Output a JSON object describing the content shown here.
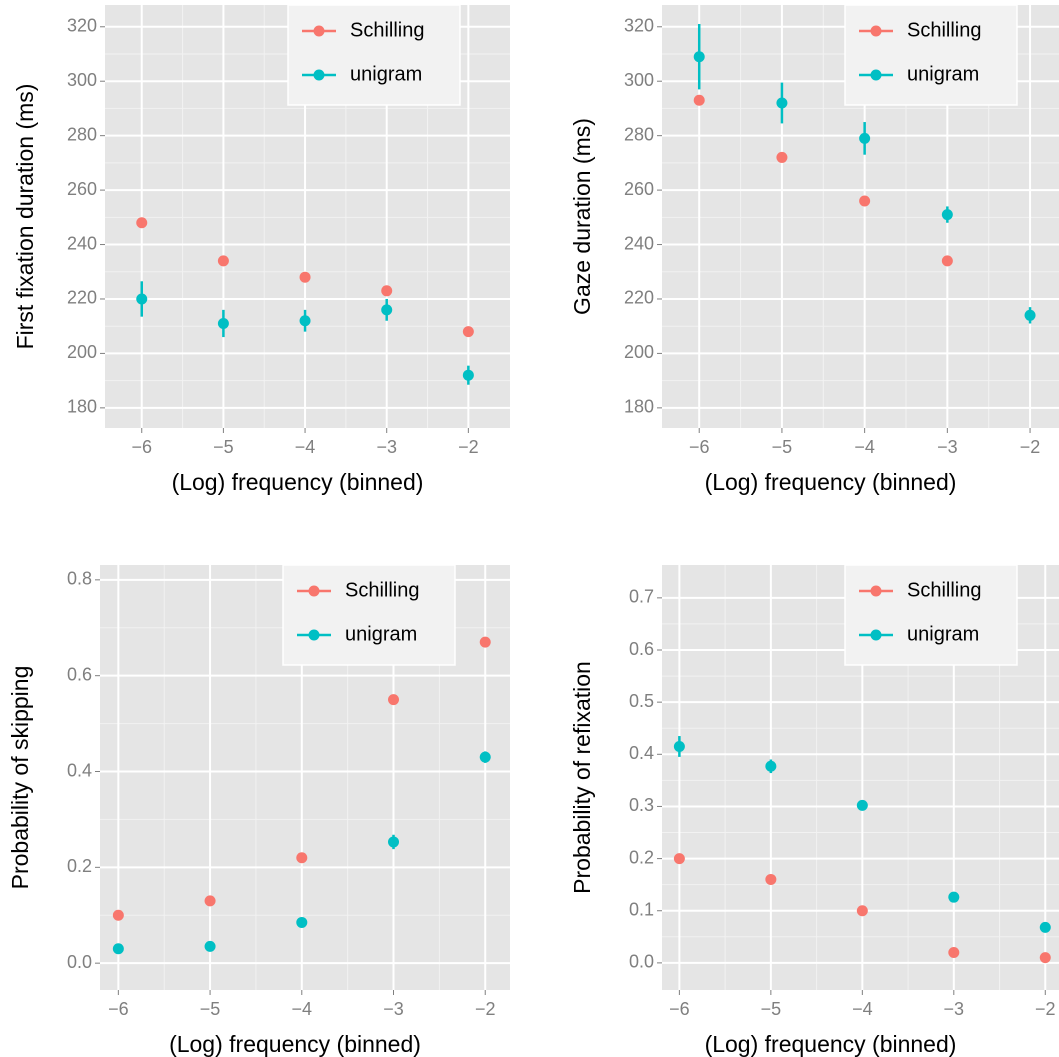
{
  "chart_data": [
    {
      "type": "scatter",
      "x_label": "(Log) frequency (binned)",
      "y_label": "First fixation duration (ms)",
      "x": [
        -6,
        -5,
        -4,
        -3,
        -2
      ],
      "xlim": [
        -6.45,
        -1.49
      ],
      "ylim": [
        172.6,
        328
      ],
      "xticks": [
        {
          "value": -6,
          "label": "−6"
        },
        {
          "value": -5,
          "label": "−5"
        },
        {
          "value": -4,
          "label": "−4"
        },
        {
          "value": -3,
          "label": "−3"
        },
        {
          "value": -2,
          "label": "−2"
        }
      ],
      "yticks": [
        180,
        200,
        220,
        240,
        260,
        280,
        300,
        320
      ],
      "grid": true,
      "legend": "top-right",
      "series": [
        {
          "name": "Schilling",
          "color": "#F8766D",
          "values": [
            248,
            234,
            228,
            223,
            208
          ]
        },
        {
          "name": "unigram",
          "color": "#00BFC4",
          "values": [
            220,
            211,
            212,
            216,
            192
          ],
          "errors": [
            6.5,
            5,
            4,
            4,
            3.5
          ]
        }
      ]
    },
    {
      "type": "scatter",
      "x_label": "(Log) frequency (binned)",
      "y_label": "Gaze duration (ms)",
      "x": [
        -6,
        -5,
        -4,
        -3,
        -2
      ],
      "xlim": [
        -6.45,
        -1.65
      ],
      "ylim": [
        172.6,
        328
      ],
      "xticks": [
        {
          "value": -6,
          "label": "−6"
        },
        {
          "value": -5,
          "label": "−5"
        },
        {
          "value": -4,
          "label": "−4"
        },
        {
          "value": -3,
          "label": "−3"
        },
        {
          "value": -2,
          "label": "−2"
        }
      ],
      "yticks": [
        180,
        200,
        220,
        240,
        260,
        280,
        300,
        320
      ],
      "grid": true,
      "legend": "top-right",
      "series": [
        {
          "name": "Schilling",
          "color": "#F8766D",
          "values": [
            293,
            272,
            256,
            234,
            null
          ]
        },
        {
          "name": "unigram",
          "color": "#00BFC4",
          "values": [
            309,
            292,
            279,
            251,
            214
          ],
          "errors": [
            12,
            7.5,
            6,
            3,
            3
          ]
        }
      ]
    },
    {
      "type": "scatter",
      "x_label": "(Log) frequency (binned)",
      "y_label": "Probability of skipping",
      "x": [
        -6,
        -5,
        -4,
        -3,
        -2
      ],
      "xlim": [
        -6.2,
        -1.73
      ],
      "ylim": [
        -0.056,
        0.831
      ],
      "xticks": [
        {
          "value": -6,
          "label": "−6"
        },
        {
          "value": -5,
          "label": "−5"
        },
        {
          "value": -4,
          "label": "−4"
        },
        {
          "value": -3,
          "label": "−3"
        },
        {
          "value": -2,
          "label": "−2"
        }
      ],
      "yticks": [
        {
          "value": 0,
          "label": "0.0"
        },
        0.2,
        0.4,
        0.6,
        0.8
      ],
      "grid": true,
      "legend": "top-right",
      "series": [
        {
          "name": "Schilling",
          "color": "#F8766D",
          "values": [
            0.1,
            0.13,
            0.22,
            0.55,
            0.67
          ]
        },
        {
          "name": "unigram",
          "color": "#00BFC4",
          "values": [
            0.03,
            0.035,
            0.085,
            0.253,
            0.43
          ],
          "errors": [
            0.004,
            0.005,
            0.006,
            0.015,
            0.012
          ]
        }
      ]
    },
    {
      "type": "scatter",
      "x_label": "(Log) frequency (binned)",
      "y_label": "Probability of refixation",
      "x": [
        -6,
        -5,
        -4,
        -3,
        -2
      ],
      "xlim": [
        -6.19,
        -1.85
      ],
      "ylim": [
        -0.052,
        0.763
      ],
      "xticks": [
        {
          "value": -6,
          "label": "−6"
        },
        {
          "value": -5,
          "label": "−5"
        },
        {
          "value": -4,
          "label": "−4"
        },
        {
          "value": -3,
          "label": "−3"
        },
        {
          "value": -2,
          "label": "−2"
        }
      ],
      "yticks": [
        {
          "value": 0,
          "label": "0.0"
        },
        0.1,
        0.2,
        0.3,
        0.4,
        0.5,
        0.6,
        0.7
      ],
      "grid": true,
      "legend": "top-right",
      "series": [
        {
          "name": "Schilling",
          "color": "#F8766D",
          "values": [
            0.2,
            0.16,
            0.1,
            0.02,
            0.01
          ]
        },
        {
          "name": "unigram",
          "color": "#00BFC4",
          "values": [
            0.415,
            0.377,
            0.302,
            0.126,
            0.068
          ],
          "errors": [
            0.02,
            0.013,
            0.008,
            0.004,
            0.004
          ]
        }
      ]
    }
  ]
}
